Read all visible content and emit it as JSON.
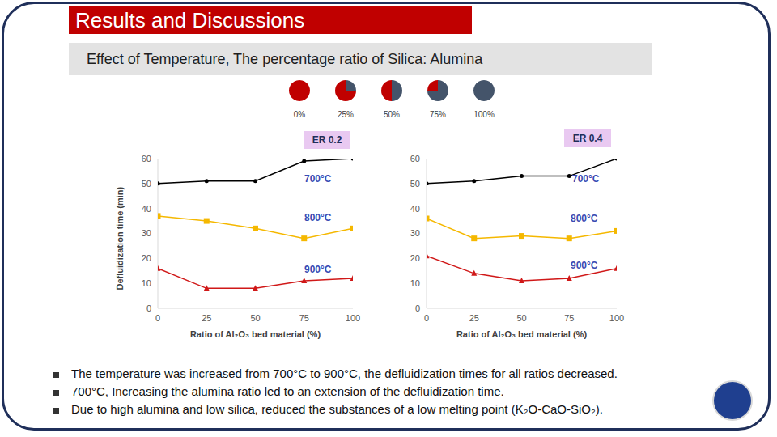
{
  "header": {
    "title": "Results and Discussions",
    "subtitle": "Effect of Temperature, The percentage ratio of Silica: Alumina"
  },
  "bullets": [
    "The temperature was increased from 700°C to 900°C, the defluidization times for all ratios decreased.",
    "700°C, Increasing the alumina ratio led to an extension of the defluidization time.",
    "Due to high alumina and low silica, reduced the substances of a low melting point (K₂O-CaO-SiO₂)."
  ],
  "chart_data": [
    {
      "type": "pie",
      "values": [
        0,
        25,
        50,
        75,
        100
      ],
      "value_labels": [
        "0%",
        "25%",
        "50%",
        "75%",
        "100%"
      ],
      "colors": [
        "#44546a",
        "#c00000"
      ]
    },
    {
      "type": "line",
      "title": "ER 0.2",
      "x_label": "Ratio of Al₂O₃ bed material (%)",
      "y_label": "Defluidization time (min)",
      "x": [
        0,
        25,
        50,
        75,
        100
      ],
      "xlim": [
        0,
        100
      ],
      "xticks": [
        0,
        25,
        50,
        75,
        100
      ],
      "ylim": [
        0,
        60
      ],
      "yticks": [
        0,
        10,
        20,
        30,
        40,
        50,
        60
      ],
      "grid": false,
      "series": [
        {
          "name": "700°C",
          "color": "#000000",
          "marker": "circle",
          "values": [
            50,
            51,
            51,
            59,
            60
          ]
        },
        {
          "name": "800°C",
          "color": "#f5b800",
          "marker": "square",
          "values": [
            37,
            35,
            32,
            28,
            32
          ]
        },
        {
          "name": "900°C",
          "color": "#d01818",
          "marker": "triangle",
          "values": [
            16,
            8,
            8,
            11,
            12
          ]
        }
      ]
    },
    {
      "type": "line",
      "title": "ER 0.4",
      "x_label": "Ratio of Al₂O₃ bed material (%)",
      "x": [
        0,
        25,
        50,
        75,
        100
      ],
      "xlim": [
        0,
        100
      ],
      "xticks": [
        0,
        25,
        50,
        75,
        100
      ],
      "ylim": [
        0,
        60
      ],
      "yticks": [
        0,
        10,
        20,
        30,
        40,
        50,
        60
      ],
      "grid": false,
      "series": [
        {
          "name": "700°C",
          "color": "#000000",
          "marker": "circle",
          "values": [
            50,
            51,
            53,
            53,
            60
          ]
        },
        {
          "name": "800°C",
          "color": "#f5b800",
          "marker": "square",
          "values": [
            36,
            28,
            29,
            28,
            31
          ]
        },
        {
          "name": "900°C",
          "color": "#d01818",
          "marker": "triangle",
          "values": [
            21,
            14,
            11,
            12,
            16
          ]
        }
      ]
    }
  ]
}
